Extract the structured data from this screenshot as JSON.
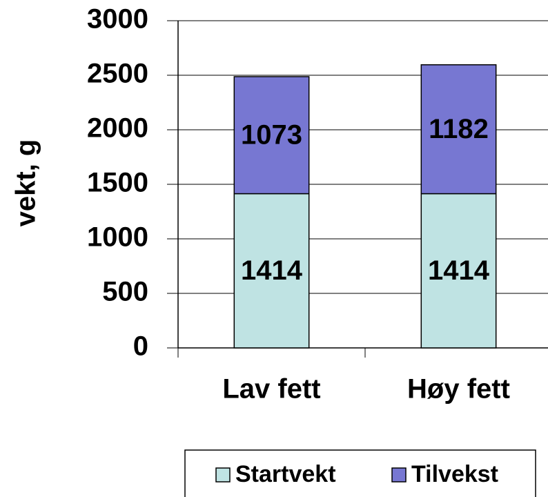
{
  "chart_data": {
    "type": "stacked_bar",
    "y_label": "vekt, g",
    "categories": [
      "Lav fett",
      "Høy fett"
    ],
    "series": [
      {
        "name": "Startvekt",
        "color": "#bfe3e3",
        "values": [
          1414,
          1414
        ]
      },
      {
        "name": "Tilvekst",
        "color": "#7777d2",
        "values": [
          1073,
          1182
        ]
      }
    ],
    "ylim": [
      0,
      3000
    ],
    "yticks": [
      0,
      500,
      1000,
      1500,
      2000,
      2500,
      3000
    ],
    "grid": true,
    "legend": "bottom"
  }
}
